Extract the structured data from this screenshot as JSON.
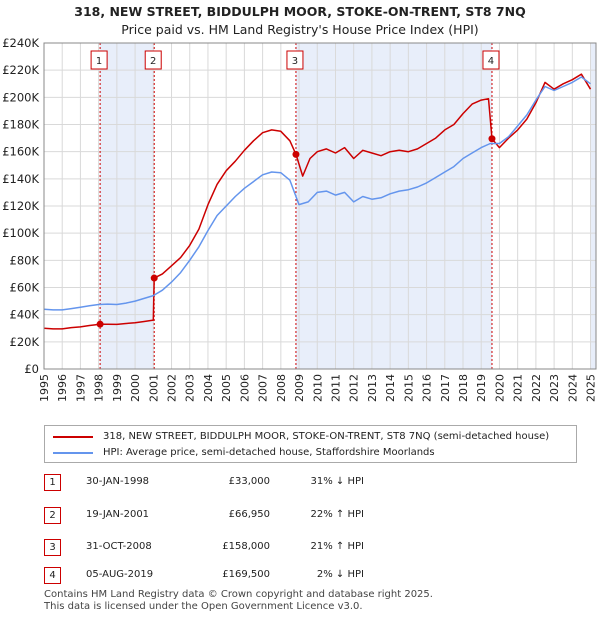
{
  "title_line1": "318, NEW STREET, BIDDULPH MOOR, STOKE-ON-TRENT, ST8 7NQ",
  "title_line2": "Price paid vs. HM Land Registry's House Price Index (HPI)",
  "chart_data": {
    "type": "line",
    "x_range": [
      1995,
      2025.3
    ],
    "ylim": [
      0,
      240000
    ],
    "y_ticks": [
      0,
      20000,
      40000,
      60000,
      80000,
      100000,
      120000,
      140000,
      160000,
      180000,
      200000,
      220000,
      240000
    ],
    "y_tick_labels": [
      "£0",
      "£20K",
      "£40K",
      "£60K",
      "£80K",
      "£100K",
      "£120K",
      "£140K",
      "£160K",
      "£180K",
      "£200K",
      "£220K",
      "£240K"
    ],
    "x_ticks": [
      1995,
      1996,
      1997,
      1998,
      1999,
      2000,
      2001,
      2002,
      2003,
      2004,
      2005,
      2006,
      2007,
      2008,
      2009,
      2010,
      2011,
      2012,
      2013,
      2014,
      2015,
      2016,
      2017,
      2018,
      2019,
      2020,
      2021,
      2022,
      2023,
      2024,
      2025
    ],
    "grid": true,
    "series": [
      {
        "name": "318, NEW STREET, BIDDULPH MOOR, STOKE-ON-TRENT, ST8 7NQ (semi-detached house)",
        "color": "#cc0000",
        "points": [
          [
            1995,
            30000
          ],
          [
            1995.5,
            29500
          ],
          [
            1996,
            29500
          ],
          [
            1996.5,
            30500
          ],
          [
            1997,
            31000
          ],
          [
            1997.5,
            32000
          ],
          [
            1998.08,
            33000
          ],
          [
            1998.5,
            33000
          ],
          [
            1999,
            32800
          ],
          [
            1999.5,
            33500
          ],
          [
            2000,
            34000
          ],
          [
            2000.5,
            35000
          ],
          [
            2001.0,
            36000
          ],
          [
            2001.05,
            66950
          ],
          [
            2001.5,
            70000
          ],
          [
            2002,
            76000
          ],
          [
            2002.5,
            82000
          ],
          [
            2003,
            91000
          ],
          [
            2003.5,
            103000
          ],
          [
            2004,
            121000
          ],
          [
            2004.5,
            136000
          ],
          [
            2005,
            146000
          ],
          [
            2005.5,
            153000
          ],
          [
            2006,
            161000
          ],
          [
            2006.5,
            168000
          ],
          [
            2007,
            174000
          ],
          [
            2007.5,
            176000
          ],
          [
            2008,
            175000
          ],
          [
            2008.5,
            168000
          ],
          [
            2008.83,
            158000
          ],
          [
            2009.2,
            142000
          ],
          [
            2009.6,
            155000
          ],
          [
            2010,
            160000
          ],
          [
            2010.5,
            162000
          ],
          [
            2011,
            159000
          ],
          [
            2011.5,
            163000
          ],
          [
            2012,
            155000
          ],
          [
            2012.5,
            161000
          ],
          [
            2013,
            159000
          ],
          [
            2013.5,
            157000
          ],
          [
            2014,
            160000
          ],
          [
            2014.5,
            161000
          ],
          [
            2015,
            160000
          ],
          [
            2015.5,
            162000
          ],
          [
            2016,
            166000
          ],
          [
            2016.5,
            170000
          ],
          [
            2017,
            176000
          ],
          [
            2017.5,
            180000
          ],
          [
            2018,
            188000
          ],
          [
            2018.5,
            195000
          ],
          [
            2019,
            198000
          ],
          [
            2019.4,
            199000
          ],
          [
            2019.59,
            169500
          ],
          [
            2020,
            163000
          ],
          [
            2020.5,
            170000
          ],
          [
            2021,
            176000
          ],
          [
            2021.5,
            184000
          ],
          [
            2022,
            196000
          ],
          [
            2022.5,
            211000
          ],
          [
            2023,
            206000
          ],
          [
            2023.5,
            210000
          ],
          [
            2024,
            213000
          ],
          [
            2024.5,
            217000
          ],
          [
            2025.0,
            206000
          ]
        ]
      },
      {
        "name": "HPI: Average price, semi-detached house, Staffordshire Moorlands",
        "color": "#6495ed",
        "points": [
          [
            1995,
            44000
          ],
          [
            1995.5,
            43500
          ],
          [
            1996,
            43500
          ],
          [
            1996.5,
            44500
          ],
          [
            1997,
            45500
          ],
          [
            1997.5,
            46500
          ],
          [
            1998,
            47500
          ],
          [
            1998.5,
            47800
          ],
          [
            1999,
            47500
          ],
          [
            1999.5,
            48500
          ],
          [
            2000,
            50000
          ],
          [
            2000.5,
            52000
          ],
          [
            2001,
            54000
          ],
          [
            2001.5,
            58000
          ],
          [
            2002,
            64000
          ],
          [
            2002.5,
            71000
          ],
          [
            2003,
            80000
          ],
          [
            2003.5,
            90000
          ],
          [
            2004,
            102000
          ],
          [
            2004.5,
            113000
          ],
          [
            2005,
            120000
          ],
          [
            2005.5,
            127000
          ],
          [
            2006,
            133000
          ],
          [
            2006.5,
            138000
          ],
          [
            2007,
            143000
          ],
          [
            2007.5,
            145000
          ],
          [
            2008,
            144500
          ],
          [
            2008.5,
            139000
          ],
          [
            2009,
            121000
          ],
          [
            2009.5,
            123000
          ],
          [
            2010,
            130000
          ],
          [
            2010.5,
            131000
          ],
          [
            2011,
            128000
          ],
          [
            2011.5,
            130000
          ],
          [
            2012,
            123000
          ],
          [
            2012.5,
            127000
          ],
          [
            2013,
            125000
          ],
          [
            2013.5,
            126000
          ],
          [
            2014,
            129000
          ],
          [
            2014.5,
            131000
          ],
          [
            2015,
            132000
          ],
          [
            2015.5,
            134000
          ],
          [
            2016,
            137000
          ],
          [
            2016.5,
            141000
          ],
          [
            2017,
            145000
          ],
          [
            2017.5,
            149000
          ],
          [
            2018,
            155000
          ],
          [
            2018.5,
            159000
          ],
          [
            2019,
            163000
          ],
          [
            2019.5,
            166000
          ],
          [
            2020,
            166000
          ],
          [
            2020.5,
            171000
          ],
          [
            2021,
            179000
          ],
          [
            2021.5,
            187000
          ],
          [
            2022,
            198000
          ],
          [
            2022.5,
            208000
          ],
          [
            2023,
            205000
          ],
          [
            2023.5,
            208000
          ],
          [
            2024,
            211000
          ],
          [
            2024.5,
            215000
          ],
          [
            2025.0,
            210000
          ]
        ]
      }
    ],
    "sales": [
      {
        "label": "1",
        "x": 1998.08,
        "price": 33000
      },
      {
        "label": "2",
        "x": 2001.05,
        "price": 66950
      },
      {
        "label": "3",
        "x": 2008.83,
        "price": 158000
      },
      {
        "label": "4",
        "x": 2019.59,
        "price": 169500
      }
    ],
    "shaded_spans": [
      [
        1998.08,
        2001.05
      ],
      [
        2008.83,
        2019.59
      ],
      [
        2025.0,
        2025.3
      ]
    ]
  },
  "legend": {
    "red_label": "318, NEW STREET, BIDDULPH MOOR, STOKE-ON-TRENT, ST8 7NQ (semi-detached house)",
    "blue_label": "HPI: Average price, semi-detached house, Staffordshire Moorlands"
  },
  "transactions": [
    {
      "num": "1",
      "date": "30-JAN-1998",
      "price": "£33,000",
      "hpi": "31% ↓ HPI"
    },
    {
      "num": "2",
      "date": "19-JAN-2001",
      "price": "£66,950",
      "hpi": "22% ↑ HPI"
    },
    {
      "num": "3",
      "date": "31-OCT-2008",
      "price": "£158,000",
      "hpi": "21% ↑ HPI"
    },
    {
      "num": "4",
      "date": "05-AUG-2019",
      "price": "£169,500",
      "hpi": "2% ↓ HPI"
    }
  ],
  "footer_line1": "Contains HM Land Registry data © Crown copyright and database right 2025.",
  "footer_line2": "This data is licensed under the Open Government Licence v3.0."
}
